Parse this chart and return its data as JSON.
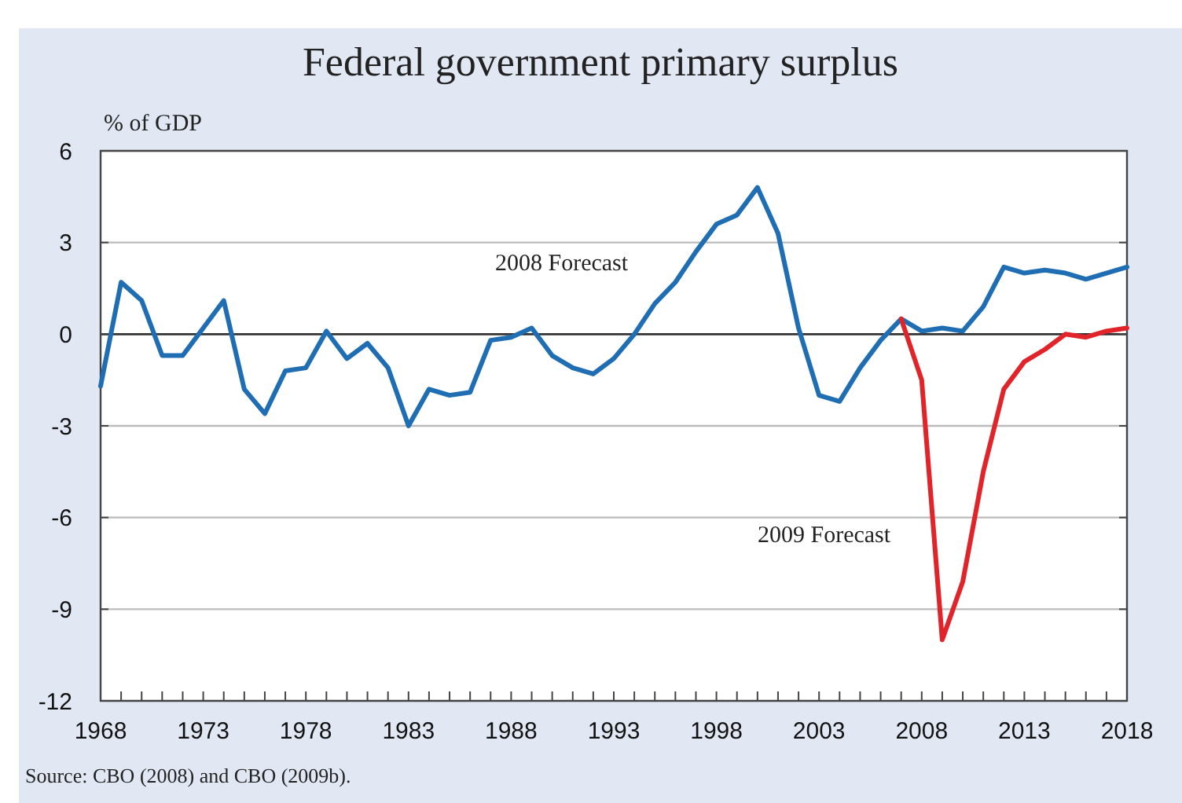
{
  "chart_data": {
    "type": "line",
    "title": "Federal government primary surplus",
    "ylabel": "% of GDP",
    "x": [
      1968,
      1969,
      1970,
      1971,
      1972,
      1973,
      1974,
      1975,
      1976,
      1977,
      1978,
      1979,
      1980,
      1981,
      1982,
      1983,
      1984,
      1985,
      1986,
      1987,
      1988,
      1989,
      1990,
      1991,
      1992,
      1993,
      1994,
      1995,
      1996,
      1997,
      1998,
      1999,
      2000,
      2001,
      2002,
      2003,
      2004,
      2005,
      2006,
      2007,
      2008,
      2009,
      2010,
      2011,
      2012,
      2013,
      2014,
      2015,
      2016,
      2017,
      2018
    ],
    "series": [
      {
        "name": "2008 Forecast",
        "color": "#1f6eb4",
        "values": [
          -1.7,
          1.7,
          1.1,
          -0.7,
          -0.7,
          0.2,
          1.1,
          -1.8,
          -2.6,
          -1.2,
          -1.1,
          0.1,
          -0.8,
          -0.3,
          -1.1,
          -3.0,
          -1.8,
          -2.0,
          -1.9,
          -0.2,
          -0.1,
          0.2,
          -0.7,
          -1.1,
          -1.3,
          -0.8,
          0.0,
          1.0,
          1.7,
          2.7,
          3.6,
          3.9,
          4.8,
          3.3,
          0.2,
          -2.0,
          -2.2,
          -1.1,
          -0.2,
          0.5,
          0.1,
          0.2,
          0.1,
          0.9,
          2.2,
          2.0,
          2.1,
          2.0,
          1.8,
          2.0,
          2.2
        ]
      },
      {
        "name": "2009 Forecast",
        "color": "#e0242a",
        "x": [
          2007,
          2008,
          2009,
          2010,
          2011,
          2012,
          2013,
          2014,
          2015,
          2016,
          2017,
          2018
        ],
        "values": [
          0.5,
          -1.5,
          -10.0,
          -8.1,
          -4.5,
          -1.8,
          -0.9,
          -0.5,
          0.0,
          -0.1,
          0.1,
          0.2
        ]
      }
    ],
    "xlim": [
      1968,
      2018
    ],
    "xticks": [
      1968,
      {
        "value": 1969,
        "label": null
      },
      {
        "value": 1970,
        "label": null
      },
      {
        "value": 1971,
        "label": null
      },
      {
        "value": 1972,
        "label": null
      },
      1973,
      {
        "value": 1974,
        "label": null
      },
      {
        "value": 1975,
        "label": null
      },
      {
        "value": 1976,
        "label": null
      },
      {
        "value": 1977,
        "label": null
      },
      1978,
      {
        "value": 1979,
        "label": null
      },
      {
        "value": 1980,
        "label": null
      },
      {
        "value": 1981,
        "label": null
      },
      {
        "value": 1982,
        "label": null
      },
      1983,
      {
        "value": 1984,
        "label": null
      },
      {
        "value": 1985,
        "label": null
      },
      {
        "value": 1986,
        "label": null
      },
      {
        "value": 1987,
        "label": null
      },
      1988,
      {
        "value": 1989,
        "label": null
      },
      {
        "value": 1990,
        "label": null
      },
      {
        "value": 1991,
        "label": null
      },
      {
        "value": 1992,
        "label": null
      },
      1993,
      {
        "value": 1994,
        "label": null
      },
      {
        "value": 1995,
        "label": null
      },
      {
        "value": 1996,
        "label": null
      },
      {
        "value": 1997,
        "label": null
      },
      1998,
      {
        "value": 1999,
        "label": null
      },
      {
        "value": 2000,
        "label": null
      },
      {
        "value": 2001,
        "label": null
      },
      {
        "value": 2002,
        "label": null
      },
      2003,
      {
        "value": 2004,
        "label": null
      },
      {
        "value": 2005,
        "label": null
      },
      {
        "value": 2006,
        "label": null
      },
      {
        "value": 2007,
        "label": null
      },
      2008,
      {
        "value": 2009,
        "label": null
      },
      {
        "value": 2010,
        "label": null
      },
      {
        "value": 2011,
        "label": null
      },
      {
        "value": 2012,
        "label": null
      },
      2013,
      {
        "value": 2014,
        "label": null
      },
      {
        "value": 2015,
        "label": null
      },
      {
        "value": 2016,
        "label": null
      },
      {
        "value": 2017,
        "label": null
      },
      2018
    ],
    "ylim": [
      -12,
      6
    ],
    "yticks": [
      -12,
      -9,
      -6,
      -3,
      0,
      3,
      6
    ],
    "grid": "y",
    "line_style": "solid",
    "annotations": [
      "Source: CBO (2008) and CBO (2009b)."
    ]
  }
}
